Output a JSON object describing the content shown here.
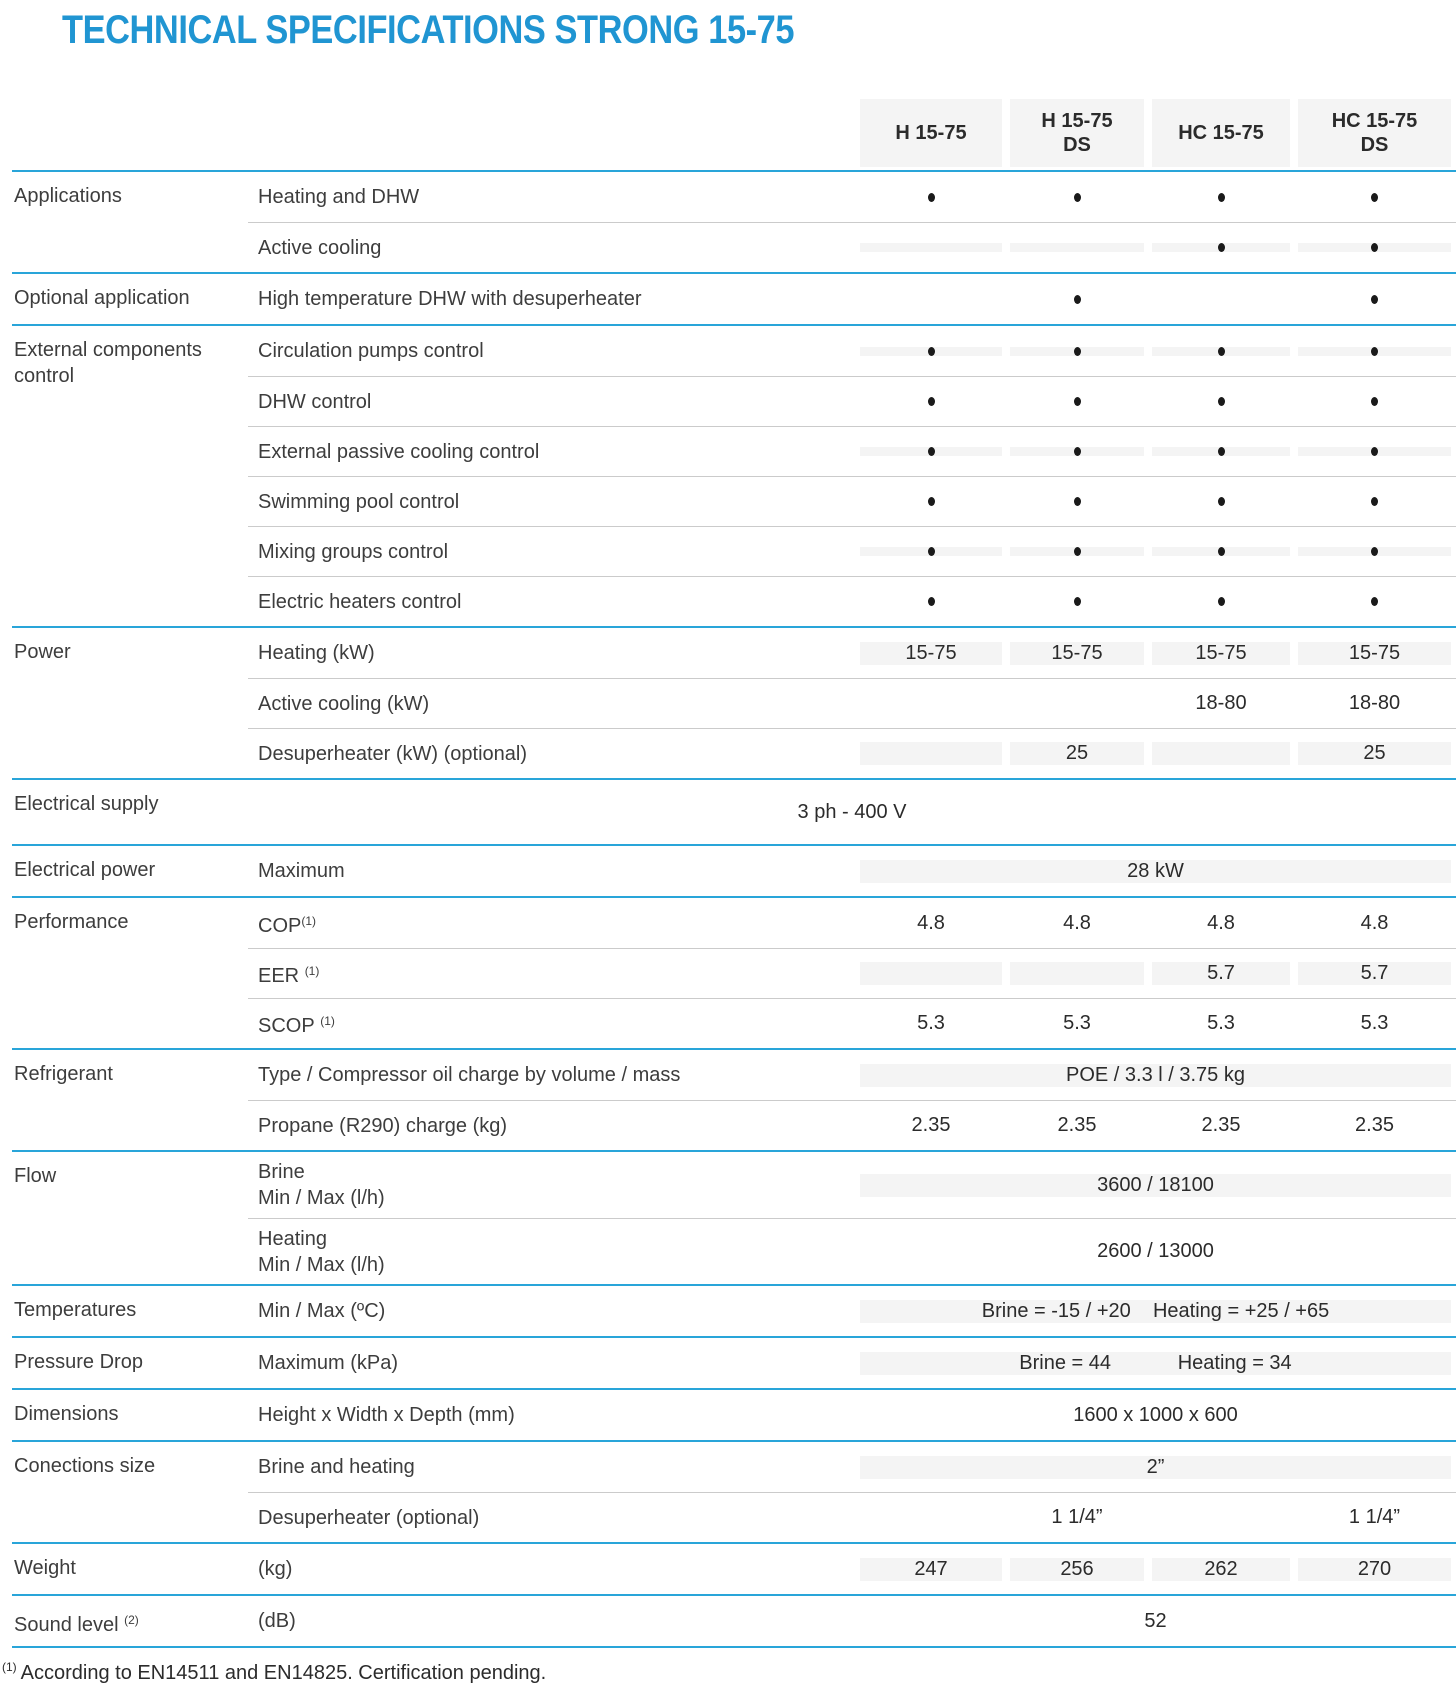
{
  "title": "TECHNICAL SPECIFICATIONS STRONG 15-75",
  "column_headers": [
    "H 15-75",
    "H 15-75\nDS",
    "HC 15-75",
    "HC 15-75\nDS"
  ],
  "bullet_symbol": "•",
  "colors": {
    "title_blue": "#2095d2",
    "rule_blue": "#29a5d9",
    "shaded_cell": "#f4f4f4",
    "row_divider": "#cbcbcb",
    "text": "#2e2e2e"
  },
  "groups": [
    {
      "label": "Applications",
      "rows": [
        {
          "sublabel": "Heating and DHW",
          "shaded": false,
          "cells": [
            "•",
            "•",
            "•",
            "•"
          ]
        },
        {
          "sublabel": "Active cooling",
          "shaded": true,
          "cells": [
            "",
            "",
            "•",
            "•"
          ]
        }
      ]
    },
    {
      "label": "Optional application",
      "rows": [
        {
          "sublabel": "High temperature DHW with desuperheater",
          "shaded": false,
          "cells": [
            "",
            "•",
            "",
            "•"
          ]
        }
      ]
    },
    {
      "label": "External components control",
      "rows": [
        {
          "sublabel": "Circulation pumps control",
          "shaded": true,
          "cells": [
            "•",
            "•",
            "•",
            "•"
          ]
        },
        {
          "sublabel": "DHW control",
          "shaded": false,
          "cells": [
            "•",
            "•",
            "•",
            "•"
          ]
        },
        {
          "sublabel": "External passive cooling control",
          "shaded": true,
          "cells": [
            "•",
            "•",
            "•",
            "•"
          ]
        },
        {
          "sublabel": "Swimming pool control",
          "shaded": false,
          "cells": [
            "•",
            "•",
            "•",
            "•"
          ]
        },
        {
          "sublabel": "Mixing groups control",
          "shaded": true,
          "cells": [
            "•",
            "•",
            "•",
            "•"
          ]
        },
        {
          "sublabel": "Electric heaters control",
          "shaded": false,
          "cells": [
            "•",
            "•",
            "•",
            "•"
          ]
        }
      ]
    },
    {
      "label": "Power",
      "rows": [
        {
          "sublabel": "Heating (kW)",
          "shaded": true,
          "cells": [
            "15-75",
            "15-75",
            "15-75",
            "15-75"
          ]
        },
        {
          "sublabel": "Active cooling (kW)",
          "shaded": false,
          "cells": [
            "",
            "",
            "18-80",
            "18-80"
          ]
        },
        {
          "sublabel": "Desuperheater (kW) (optional)",
          "shaded": true,
          "cells": [
            "",
            "25",
            "",
            "25"
          ]
        }
      ]
    },
    {
      "label": "Electrical supply",
      "rows": [
        {
          "sublabel": "",
          "shaded": false,
          "wide_span": "3 ph - 400 V"
        }
      ]
    },
    {
      "label": "Electrical power",
      "rows": [
        {
          "sublabel": "Maximum",
          "shaded": true,
          "span": "28 kW"
        }
      ]
    },
    {
      "label": "Performance",
      "rows": [
        {
          "sublabel": "COP",
          "sup": "(1)",
          "sup_gap": false,
          "shaded": false,
          "cells": [
            "4.8",
            "4.8",
            "4.8",
            "4.8"
          ]
        },
        {
          "sublabel": "EER",
          "sup": "(1)",
          "sup_gap": true,
          "shaded": true,
          "cells": [
            "",
            "",
            "5.7",
            "5.7"
          ]
        },
        {
          "sublabel": "SCOP",
          "sup": "(1)",
          "sup_gap": true,
          "shaded": false,
          "cells": [
            "5.3",
            "5.3",
            "5.3",
            "5.3"
          ]
        }
      ]
    },
    {
      "label": "Refrigerant",
      "rows": [
        {
          "sublabel": "Type / Compressor oil charge by volume / mass",
          "shaded": true,
          "span": "POE / 3.3 l / 3.75 kg"
        },
        {
          "sublabel": "Propane (R290) charge (kg)",
          "shaded": false,
          "cells": [
            "2.35",
            "2.35",
            "2.35",
            "2.35"
          ]
        }
      ]
    },
    {
      "label": "Flow",
      "rows": [
        {
          "sublabel": "Brine\nMin / Max (l/h)",
          "shaded": true,
          "span": "3600 / 18100"
        },
        {
          "sublabel": "Heating\nMin / Max (l/h)",
          "shaded": false,
          "span": "2600 / 13000"
        }
      ]
    },
    {
      "label": "Temperatures",
      "rows": [
        {
          "sublabel": "Min / Max (ºC)",
          "shaded": true,
          "span": "Brine = -15 / +20    Heating = +25 / +65"
        }
      ]
    },
    {
      "label": "Pressure Drop",
      "rows": [
        {
          "sublabel": "Maximum (kPa)",
          "shaded": true,
          "span": "Brine = 44            Heating = 34"
        }
      ]
    },
    {
      "label": "Dimensions",
      "rows": [
        {
          "sublabel": "Height x Width x Depth (mm)",
          "shaded": false,
          "span": "1600 x 1000 x 600"
        }
      ]
    },
    {
      "label": "Conections size",
      "rows": [
        {
          "sublabel": "Brine and heating",
          "shaded": true,
          "span": "2”"
        },
        {
          "sublabel": "Desuperheater (optional)",
          "shaded": false,
          "cells": [
            "",
            "1 1/4”",
            "",
            "1 1/4”"
          ]
        }
      ]
    },
    {
      "label": "Weight",
      "rows": [
        {
          "sublabel": "(kg)",
          "shaded": true,
          "cells": [
            "247",
            "256",
            "262",
            "270"
          ]
        }
      ]
    },
    {
      "label": "Sound level",
      "label_sup": "(2)",
      "rows": [
        {
          "sublabel": "(dB)",
          "shaded": false,
          "span": "52"
        }
      ]
    }
  ],
  "footnote": {
    "marker": "(1)",
    "text": "According to EN14511 and EN14825. Certification pending."
  }
}
